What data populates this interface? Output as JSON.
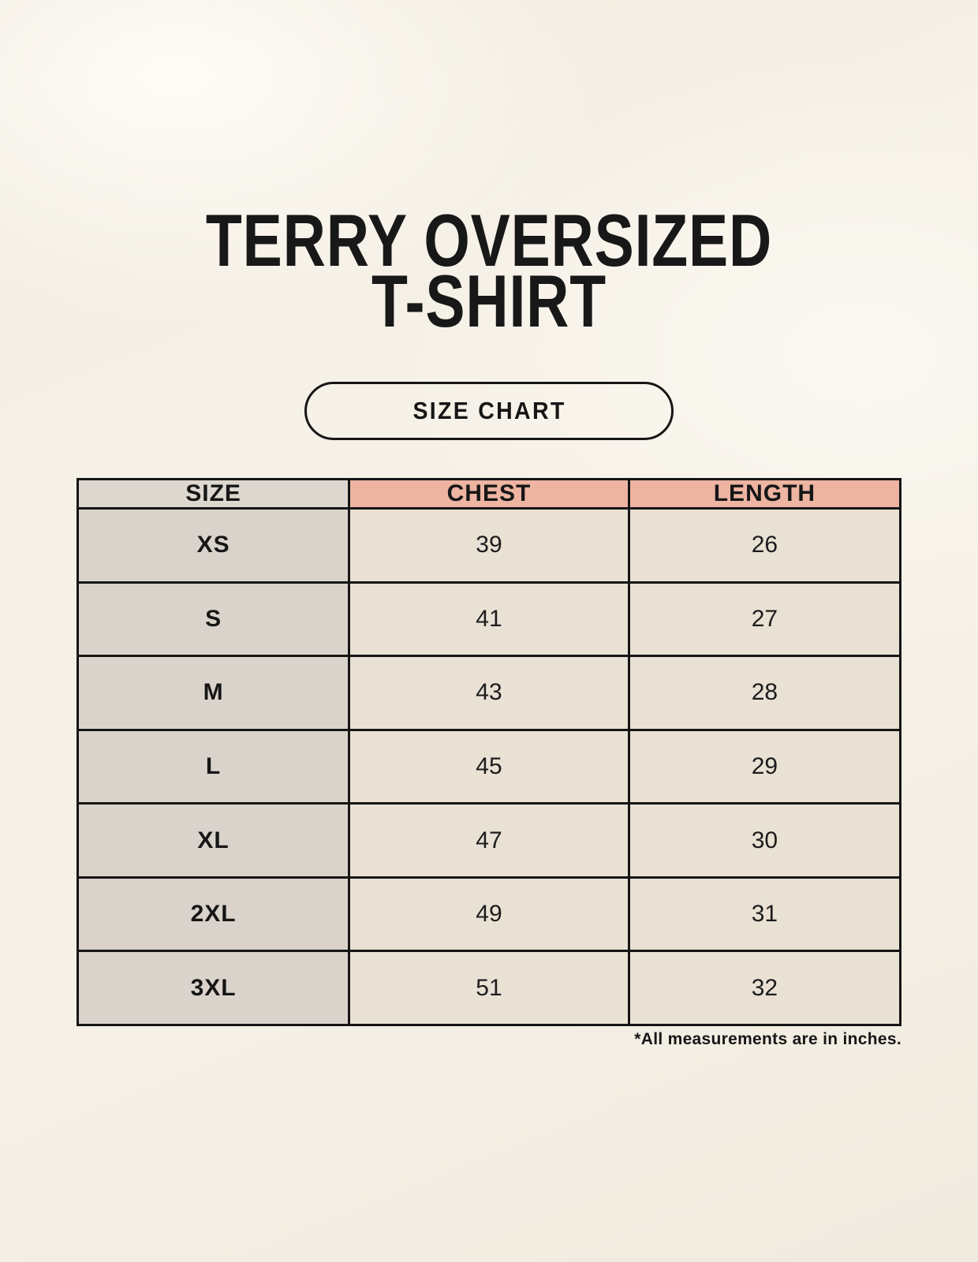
{
  "header": {
    "title_line1": "TERRY OVERSIZED",
    "title_line2": "T-SHIRT",
    "button_label": "SIZE CHART"
  },
  "colors": {
    "page_background": "#F6F1E7",
    "header_pink": "#EDB4A2",
    "header_gray": "#DED7D0",
    "size_column_gray": "#DAD3CB",
    "data_cell_cream": "#E8E1D4",
    "border": "#151515",
    "text": "#161616"
  },
  "chart_data": {
    "type": "table",
    "title": "TERRY OVERSIZED T-SHIRT",
    "columns": [
      "SIZE",
      "CHEST",
      "LENGTH"
    ],
    "rows": [
      [
        "XS",
        "39",
        "26"
      ],
      [
        "S",
        "41",
        "27"
      ],
      [
        "M",
        "43",
        "28"
      ],
      [
        "L",
        "45",
        "29"
      ],
      [
        "XL",
        "47",
        "30"
      ],
      [
        "2XL",
        "49",
        "31"
      ],
      [
        "3XL",
        "51",
        "32"
      ]
    ],
    "units": "inches",
    "footnote": "*All measurements are in inches."
  }
}
